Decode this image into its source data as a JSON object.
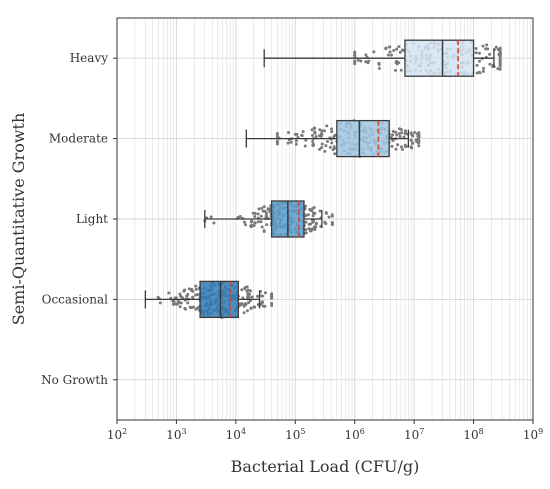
{
  "chart_data": {
    "type": "box",
    "xlabel": "Bacterial Load (CFU/g)",
    "ylabel": "Semi-Quantitative Growth",
    "xscale": "log",
    "xlim": [
      100,
      1000000000
    ],
    "x_ticks": [
      {
        "value": 100,
        "base": "10",
        "exp": "2"
      },
      {
        "value": 1000,
        "base": "10",
        "exp": "3"
      },
      {
        "value": 10000,
        "base": "10",
        "exp": "4"
      },
      {
        "value": 100000,
        "base": "10",
        "exp": "5"
      },
      {
        "value": 1000000,
        "base": "10",
        "exp": "6"
      },
      {
        "value": 10000000,
        "base": "10",
        "exp": "7"
      },
      {
        "value": 100000000,
        "base": "10",
        "exp": "8"
      },
      {
        "value": 1000000000,
        "base": "10",
        "exp": "9"
      }
    ],
    "grid": true,
    "categories": [
      "Heavy",
      "Moderate",
      "Light",
      "Occasional",
      "No Growth"
    ],
    "boxes": [
      {
        "category": "Heavy",
        "whisker_low": 30000,
        "q1": 7000000,
        "median": 30000000,
        "mean": 55000000,
        "q3": 100000000,
        "whisker_high": 220000000,
        "color": "#d4e4f4",
        "points_range": [
          1000000,
          280000000
        ],
        "n_points": 200
      },
      {
        "category": "Moderate",
        "whisker_low": 15000,
        "q1": 500000,
        "median": 1200000,
        "mean": 2500000,
        "q3": 3800000,
        "whisker_high": 8000000,
        "color": "#9ec6e2",
        "points_range": [
          50000,
          12000000
        ],
        "n_points": 220
      },
      {
        "category": "Light",
        "whisker_low": 3000,
        "q1": 40000,
        "median": 75000,
        "mean": 115000,
        "q3": 140000,
        "whisker_high": 280000,
        "color": "#5b9dcb",
        "points_range": [
          3000,
          420000
        ],
        "n_points": 210
      },
      {
        "category": "Occasional",
        "whisker_low": 300,
        "q1": 2500,
        "median": 5500,
        "mean": 8000,
        "q3": 11000,
        "whisker_high": 25000,
        "color": "#2f7bb7",
        "points_range": [
          300,
          40000
        ],
        "n_points": 230
      }
    ],
    "colors": {
      "mean_line": "#d9453b",
      "box_edge": "#3a3a3a",
      "points": "#7a7a7a",
      "grid": "#d6d6d6"
    }
  }
}
